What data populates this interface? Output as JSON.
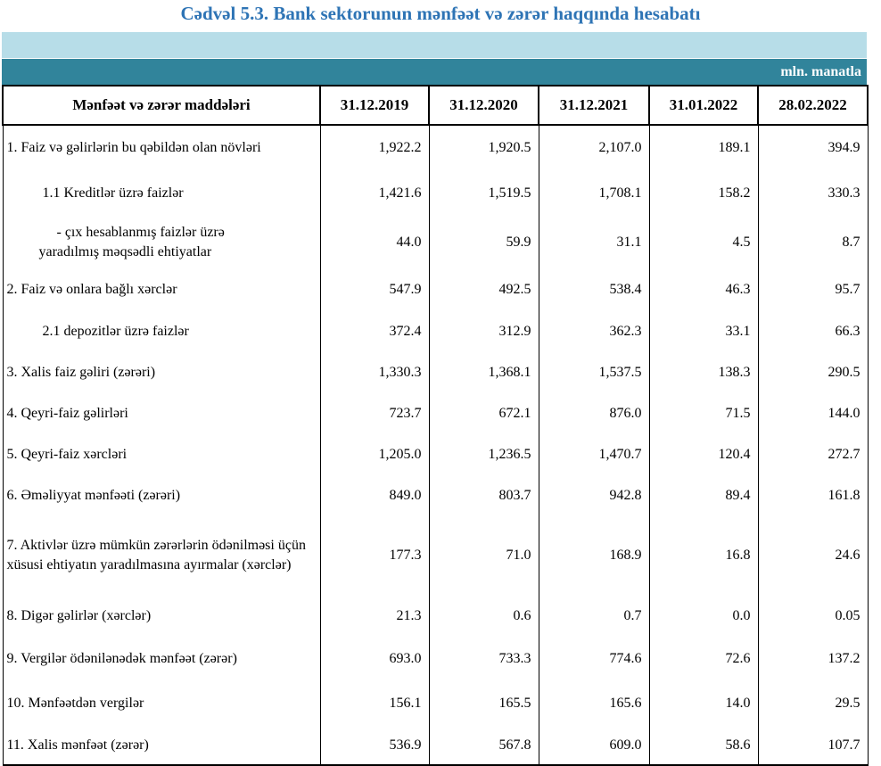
{
  "title": "Cədvəl 5.3. Bank sektorunun mənfəət və zərər haqqında hesabatı",
  "unit": "mln. manatla",
  "table": {
    "header": [
      "Mənfəət və zərər maddələri",
      "31.12.2019",
      "31.12.2020",
      "31.12.2021",
      "31.01.2022",
      "28.02.2022"
    ],
    "rows": [
      [
        "1. Faiz və gəlirlərin bu qəbildən olan növləri",
        "1,922.2",
        "1,920.5",
        "2,107.0",
        "189.1",
        "394.9"
      ],
      [
        "1.1 Kreditlər üzrə faizlər",
        "1,421.6",
        "1,519.5",
        "1,708.1",
        "158.2",
        "330.3"
      ],
      [
        "- çıx hesablanmış faizlər üzrə yaradılmış məqsədli ehtiyatlar",
        "44.0",
        "59.9",
        "31.1",
        "4.5",
        "8.7"
      ],
      [
        "2. Faiz və onlara bağlı xərclər",
        "547.9",
        "492.5",
        "538.4",
        "46.3",
        "95.7"
      ],
      [
        "2.1 depozitlər üzrə faizlər",
        "372.4",
        "312.9",
        "362.3",
        "33.1",
        "66.3"
      ],
      [
        "3. Xalis faiz gəliri (zərəri)",
        "1,330.3",
        "1,368.1",
        "1,537.5",
        "138.3",
        "290.5"
      ],
      [
        "4. Qeyri-faiz gəlirləri",
        "723.7",
        "672.1",
        "876.0",
        "71.5",
        "144.0"
      ],
      [
        "5. Qeyri-faiz xərcləri",
        "1,205.0",
        "1,236.5",
        "1,470.7",
        "120.4",
        "272.7"
      ],
      [
        "6. Əməliyyat mənfəəti (zərəri)",
        "849.0",
        "803.7",
        "942.8",
        "89.4",
        "161.8"
      ],
      [
        "7. Aktivlər üzrə mümkün zərərlərin ödənilməsi üçün xüsusi ehtiyatın yaradılmasına ayırmalar (xərclər)",
        "177.3",
        "71.0",
        "168.9",
        "16.8",
        "24.6"
      ],
      [
        "8. Digər gəlirlər (xərclər)",
        "21.3",
        "0.6",
        "0.7",
        "0.0",
        "0.05"
      ],
      [
        "9. Vergilər ödənilənədək mənfəət (zərər)",
        "693.0",
        "733.3",
        "774.6",
        "72.6",
        "137.2"
      ],
      [
        "10. Mənfəətdən vergilər",
        "156.1",
        "165.5",
        "165.6",
        "14.0",
        "29.5"
      ],
      [
        "11. Xalis mənfəət (zərər)",
        "536.9",
        "567.8",
        "609.0",
        "58.6",
        "107.7"
      ]
    ]
  }
}
